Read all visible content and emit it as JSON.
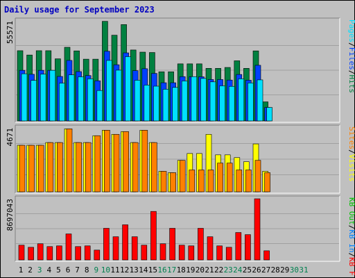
{
  "title": "Daily usage for September 2023",
  "colors": {
    "hits": "#008040",
    "files": "#0040ff",
    "pages": "#00e0ff",
    "visits": "#ffff00",
    "sites": "#ff8000",
    "kb_f": "#ff0000",
    "kb_in": "#0080ff",
    "kb_out": "#00c000",
    "weekday": "#000000",
    "weekend": "#00804f",
    "title": "#0000c0"
  },
  "chart_data": [
    {
      "type": "bar",
      "panel": "hits_files_pages",
      "ymax_label": "55571",
      "ylim": [
        0,
        55571
      ],
      "legend": [
        {
          "text": "Hits",
          "color": "#008040"
        },
        {
          "text": "/",
          "color": "#000000"
        },
        {
          "text": "Files",
          "color": "#0040ff"
        },
        {
          "text": "/",
          "color": "#000000"
        },
        {
          "text": "Pages",
          "color": "#00e0ff"
        }
      ],
      "categories": [
        "1",
        "2",
        "3",
        "4",
        "5",
        "6",
        "7",
        "8",
        "9",
        "10",
        "11",
        "12",
        "13",
        "14",
        "15",
        "16",
        "17",
        "18",
        "19",
        "20",
        "21",
        "22",
        "23",
        "24",
        "25",
        "26",
        "27",
        "28",
        "29",
        "30",
        "31"
      ],
      "series": [
        {
          "name": "Hits",
          "values": [
            39000,
            36600,
            39000,
            39000,
            34500,
            40900,
            38900,
            34300,
            34300,
            55300,
            47600,
            53500,
            39400,
            38200,
            38000,
            27300,
            27300,
            31700,
            31700,
            31700,
            29200,
            29200,
            29700,
            33400,
            29200,
            38900,
            10600,
            0,
            0,
            0,
            0
          ]
        },
        {
          "name": "Files",
          "values": [
            28100,
            25900,
            28100,
            28100,
            24700,
            33600,
            27400,
            25200,
            22300,
            38700,
            31200,
            37800,
            27900,
            29000,
            26400,
            21200,
            21200,
            24600,
            24500,
            24500,
            23000,
            23000,
            22700,
            25800,
            22600,
            30900,
            7500,
            0,
            0,
            0,
            0
          ]
        },
        {
          "name": "Pages",
          "values": [
            26200,
            22500,
            26000,
            28100,
            21000,
            25600,
            24500,
            23400,
            16900,
            33600,
            28200,
            35700,
            22600,
            19900,
            19300,
            17600,
            18600,
            22200,
            24600,
            23600,
            21700,
            19500,
            19200,
            23400,
            21100,
            22800,
            7500,
            0,
            0,
            0,
            0
          ]
        }
      ]
    },
    {
      "type": "bar",
      "panel": "visits_sites",
      "ymax_label": "4671",
      "ylim": [
        0,
        4671
      ],
      "legend": [
        {
          "text": "Visits",
          "color": "#ffff00"
        },
        {
          "text": "/",
          "color": "#000000"
        },
        {
          "text": "Sites",
          "color": "#ff8000"
        }
      ],
      "categories": [
        "1",
        "2",
        "3",
        "4",
        "5",
        "6",
        "7",
        "8",
        "9",
        "10",
        "11",
        "12",
        "13",
        "14",
        "15",
        "16",
        "17",
        "18",
        "19",
        "20",
        "21",
        "22",
        "23",
        "24",
        "25",
        "26",
        "27",
        "28",
        "29",
        "30",
        "31"
      ],
      "series": [
        {
          "name": "Visits",
          "values": [
            3400,
            3400,
            3400,
            3600,
            3600,
            4600,
            3600,
            3600,
            4100,
            4500,
            4200,
            4400,
            3600,
            4500,
            3600,
            1500,
            1400,
            2300,
            2800,
            2800,
            4200,
            2700,
            2700,
            2500,
            2200,
            3500,
            1500,
            0,
            0,
            0,
            0
          ]
        },
        {
          "name": "Sites",
          "values": [
            3400,
            3400,
            3400,
            3600,
            3600,
            4600,
            3600,
            3600,
            4100,
            4500,
            4200,
            4400,
            3600,
            4500,
            3600,
            1500,
            1400,
            2300,
            1600,
            1600,
            1600,
            2100,
            2100,
            1600,
            1600,
            2300,
            1400,
            0,
            0,
            0,
            0
          ]
        }
      ]
    },
    {
      "type": "bar",
      "panel": "kbytes",
      "ymax_label": "8697043",
      "ylim": [
        0,
        8697043
      ],
      "legend": [
        {
          "text": "KB F",
          "color": "#ff0000"
        },
        {
          "text": "/",
          "color": "#000000"
        },
        {
          "text": "KB In",
          "color": "#0080ff"
        },
        {
          "text": "/",
          "color": "#000000"
        },
        {
          "text": "KB Out",
          "color": "#00c000"
        }
      ],
      "categories": [
        "1",
        "2",
        "3",
        "4",
        "5",
        "6",
        "7",
        "8",
        "9",
        "10",
        "11",
        "12",
        "13",
        "14",
        "15",
        "16",
        "17",
        "18",
        "19",
        "20",
        "21",
        "22",
        "23",
        "24",
        "25",
        "26",
        "27",
        "28",
        "29",
        "30",
        "31"
      ],
      "series": [
        {
          "name": "KB F",
          "values": [
            2100000,
            1800000,
            2300000,
            1900000,
            2000000,
            3700000,
            1900000,
            2000000,
            1400000,
            4500000,
            3300000,
            5000000,
            3300000,
            2100000,
            6900000,
            2300000,
            4500000,
            2100000,
            2000000,
            4500000,
            3300000,
            2000000,
            1800000,
            3900000,
            3600000,
            8697043,
            1300000,
            0,
            0,
            0,
            0
          ]
        }
      ]
    }
  ],
  "x_labels": [
    {
      "text": "1",
      "weekend": false
    },
    {
      "text": "2",
      "weekend": false
    },
    {
      "text": "3",
      "weekend": true
    },
    {
      "text": "4",
      "weekend": false
    },
    {
      "text": "5",
      "weekend": false
    },
    {
      "text": "6",
      "weekend": false
    },
    {
      "text": "7",
      "weekend": false
    },
    {
      "text": "8",
      "weekend": false
    },
    {
      "text": "9",
      "weekend": true
    },
    {
      "text": "10",
      "weekend": true
    },
    {
      "text": "11",
      "weekend": false
    },
    {
      "text": "12",
      "weekend": false
    },
    {
      "text": "13",
      "weekend": false
    },
    {
      "text": "14",
      "weekend": false
    },
    {
      "text": "15",
      "weekend": false
    },
    {
      "text": "16",
      "weekend": true
    },
    {
      "text": "17",
      "weekend": true
    },
    {
      "text": "18",
      "weekend": false
    },
    {
      "text": "19",
      "weekend": false
    },
    {
      "text": "20",
      "weekend": false
    },
    {
      "text": "21",
      "weekend": false
    },
    {
      "text": "22",
      "weekend": false
    },
    {
      "text": "23",
      "weekend": true
    },
    {
      "text": "24",
      "weekend": true
    },
    {
      "text": "25",
      "weekend": false
    },
    {
      "text": "26",
      "weekend": false
    },
    {
      "text": "27",
      "weekend": false
    },
    {
      "text": "28",
      "weekend": false
    },
    {
      "text": "29",
      "weekend": false
    },
    {
      "text": "30",
      "weekend": true
    },
    {
      "text": "31",
      "weekend": true
    }
  ]
}
